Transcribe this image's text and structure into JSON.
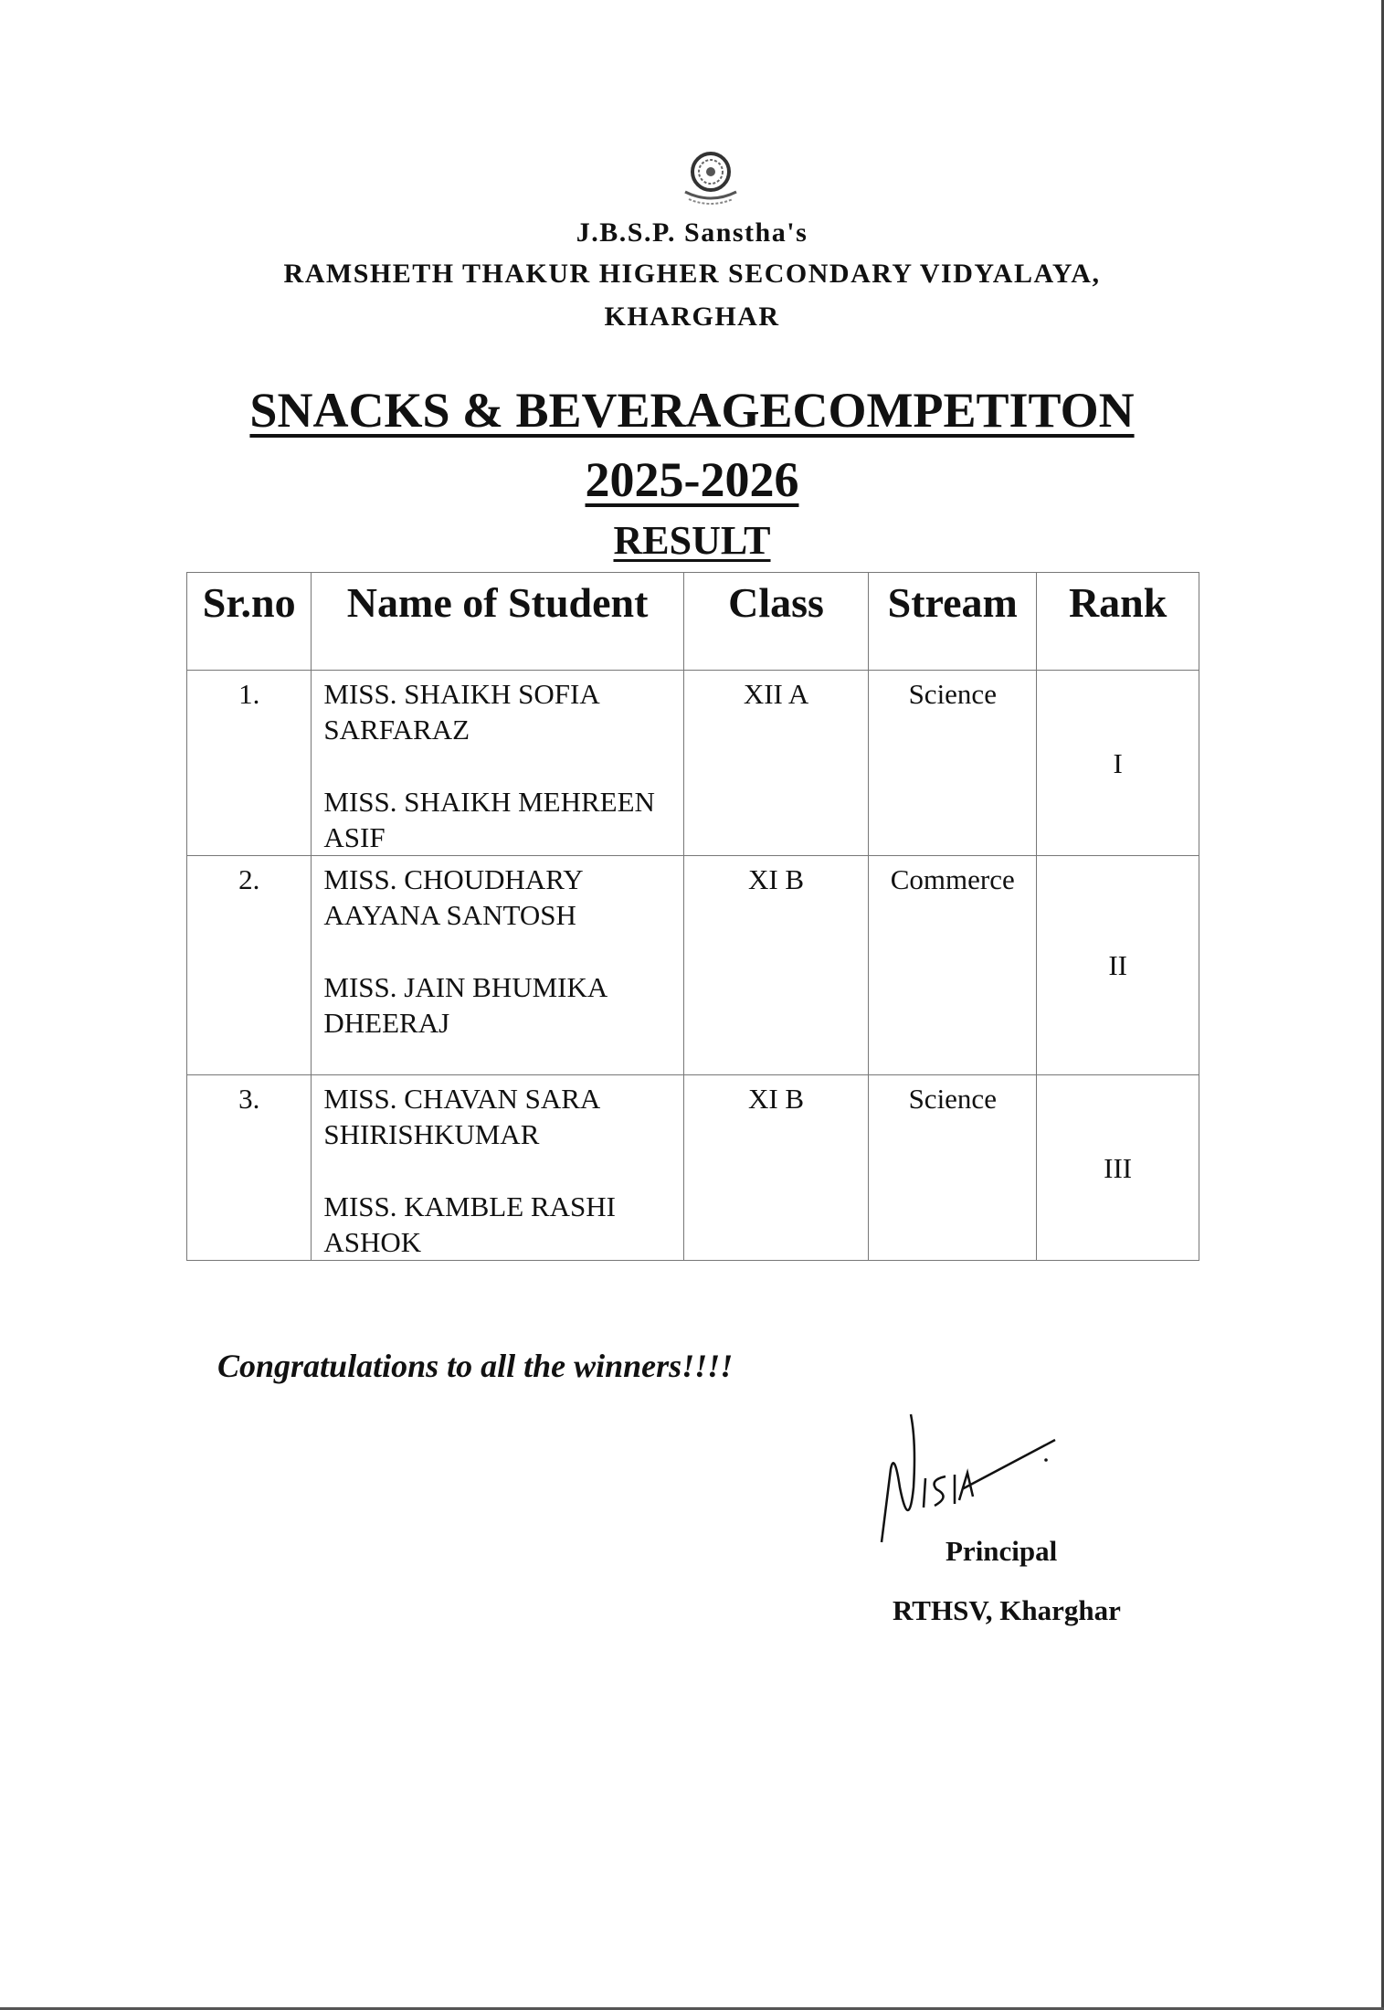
{
  "header": {
    "logo_icon": "school-emblem-icon",
    "trust": "J.B.S.P. Sanstha's",
    "school": "RAMSHETH THAKUR HIGHER SECONDARY VIDYALAYA,",
    "place": "KHARGHAR"
  },
  "title": {
    "event": "SNACKS & BEVERAGECOMPETITON",
    "year": "2025-2026",
    "subtitle": "RESULT"
  },
  "table": {
    "columns": [
      "Sr.no",
      "Name of Student",
      "Class",
      "Stream",
      "Rank"
    ],
    "rows": [
      {
        "srno": "1.",
        "names": [
          "MISS. SHAIKH SOFIA SARFARAZ",
          "MISS. SHAIKH MEHREEN ASIF"
        ],
        "class": "XII A",
        "stream": "Science",
        "rank": "I"
      },
      {
        "srno": "2.",
        "names": [
          "MISS. CHOUDHARY AAYANA SANTOSH",
          "MISS. JAIN BHUMIKA DHEERAJ"
        ],
        "class": "XI B",
        "stream": "Commerce",
        "rank": "II"
      },
      {
        "srno": "3.",
        "names": [
          "MISS. CHAVAN SARA SHIRISHKUMAR",
          "MISS. KAMBLE RASHI ASHOK"
        ],
        "class": "XI B",
        "stream": "Science",
        "rank": "III"
      }
    ]
  },
  "footer": {
    "congratulations": "Congratulations to all the winners!!!!",
    "signature_icon": "handwritten-signature",
    "designation": "Principal",
    "institution": "RTHSV, Kharghar"
  }
}
